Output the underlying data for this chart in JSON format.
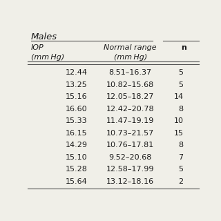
{
  "title": "Males",
  "col1_header_line1": "IOP",
  "col1_header_line2": "(mm Hg)",
  "col2_header_line1": "Normal range",
  "col2_header_line2": "(mm Hg)",
  "col3_header": "n",
  "col1_values": [
    "12.44",
    "13.25",
    "15.16",
    "16.60",
    "15.33",
    "16.15",
    "14.29",
    "15.10",
    "15.28",
    "15.64"
  ],
  "col2_values": [
    "8.51–16.37",
    "10.82–15.68",
    "12.05–18.27",
    "12.42–20.78",
    "11.47–19.19",
    "10.73–21.57",
    "10.76–17.81",
    "9.52–20.68",
    "12.58–17.99",
    "13.12–18.16"
  ],
  "col3_values": [
    "5",
    "5",
    "14",
    "8",
    "10",
    "15",
    "8",
    "7",
    "5",
    "2"
  ],
  "bg_color": "#f0efe8",
  "text_color": "#1a1a1a",
  "font_size": 8.0,
  "title_font_size": 9.5,
  "line_color": "#555555"
}
